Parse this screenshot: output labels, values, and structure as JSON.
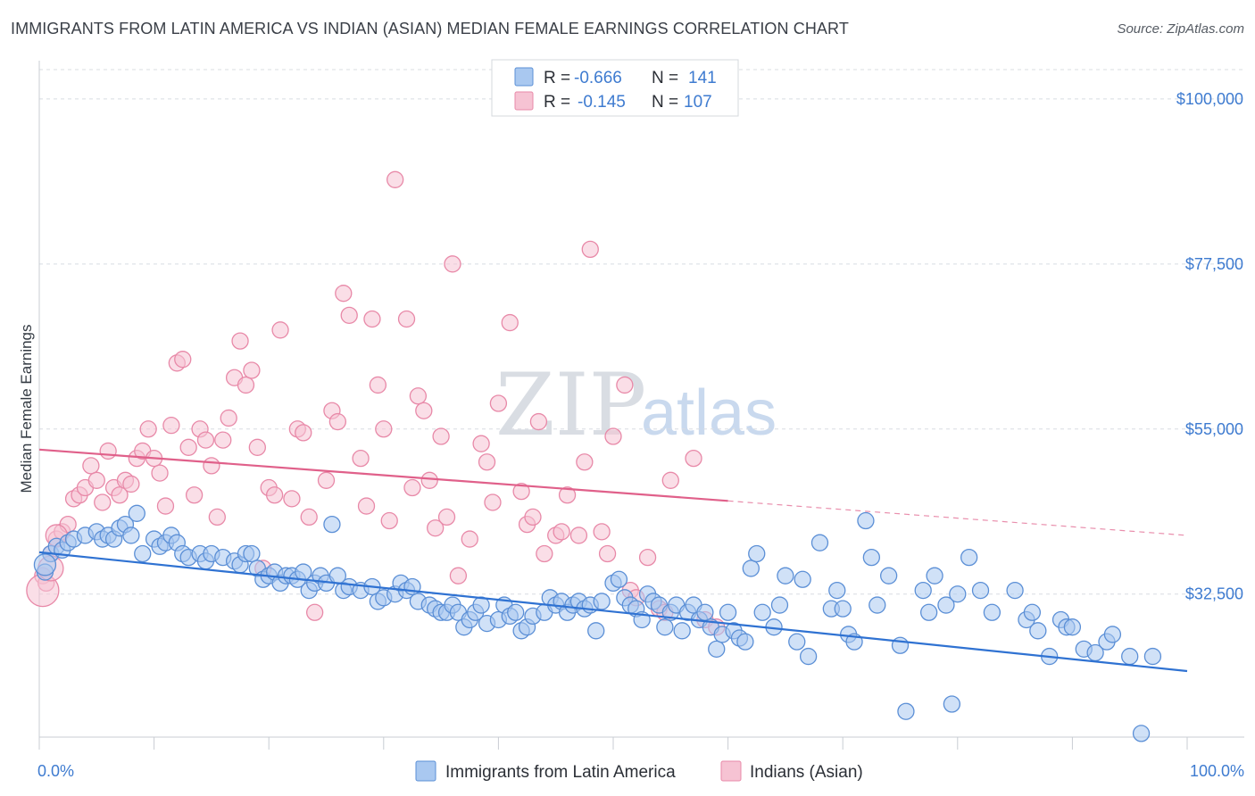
{
  "title": "IMMIGRANTS FROM LATIN AMERICA VS INDIAN (ASIAN) MEDIAN FEMALE EARNINGS CORRELATION CHART",
  "source": "Source: ZipAtlas.com",
  "watermark": {
    "zip": "ZIP",
    "atlas": "atlas"
  },
  "colors": {
    "blue_fill": "#a9c8f0",
    "blue_stroke": "#5b8fd6",
    "blue_line": "#2f72d2",
    "pink_fill": "#f6c3d3",
    "pink_stroke": "#e889a8",
    "pink_line": "#e0608a",
    "grid": "#d8dce2",
    "axis_text": "#3e7bd0"
  },
  "legend": {
    "rows": [
      {
        "r_label": "R =",
        "r_value": "-0.666",
        "n_label": "N =",
        "n_value": "141"
      },
      {
        "r_label": "R =",
        "r_value": "-0.145",
        "n_label": "N =",
        "n_value": "107"
      }
    ]
  },
  "bottom_legend": [
    "Immigrants from Latin America",
    "Indians (Asian)"
  ],
  "chart_data": {
    "type": "scatter",
    "title": "IMMIGRANTS FROM LATIN AMERICA VS INDIAN (ASIAN) MEDIAN FEMALE EARNINGS CORRELATION CHART",
    "xlabel": "",
    "ylabel": "Median Female Earnings",
    "xlim": [
      0,
      100
    ],
    "ylim": [
      13000,
      104000
    ],
    "x_tick_labels": [
      "0.0%",
      "100.0%"
    ],
    "y_ticks": [
      32500,
      55000,
      77500,
      100000
    ],
    "y_tick_labels": [
      "$32,500",
      "$55,000",
      "$77,500",
      "$100,000"
    ],
    "grid": true,
    "legend_position": "top-center",
    "series": [
      {
        "name": "Immigrants from Latin America",
        "r": -0.666,
        "n": 141,
        "trend": {
          "x": [
            0,
            100
          ],
          "y": [
            38200,
            22000
          ]
        },
        "points": [
          [
            0.5,
            35.5
          ],
          [
            1,
            38
          ],
          [
            1.5,
            39
          ],
          [
            2,
            38.5
          ],
          [
            2.5,
            39.5
          ],
          [
            3,
            40
          ],
          [
            4,
            40.5
          ],
          [
            5,
            41
          ],
          [
            5.5,
            40
          ],
          [
            6,
            40.5
          ],
          [
            6.5,
            40
          ],
          [
            7,
            41.5
          ],
          [
            7.5,
            42
          ],
          [
            8,
            40.5
          ],
          [
            8.5,
            43.5
          ],
          [
            9,
            38
          ],
          [
            10,
            40
          ],
          [
            10.5,
            39
          ],
          [
            11,
            39.5
          ],
          [
            11.5,
            40.5
          ],
          [
            12,
            39.5
          ],
          [
            12.5,
            38
          ],
          [
            13,
            37.5
          ],
          [
            14,
            38
          ],
          [
            14.5,
            37
          ],
          [
            15,
            38
          ],
          [
            16,
            37.5
          ],
          [
            17,
            37
          ],
          [
            17.5,
            36.5
          ],
          [
            18,
            38
          ],
          [
            18.5,
            38
          ],
          [
            19,
            36
          ],
          [
            19.5,
            34.5
          ],
          [
            20,
            35
          ],
          [
            20.5,
            35.5
          ],
          [
            21,
            34
          ],
          [
            21.5,
            35
          ],
          [
            22,
            35
          ],
          [
            22.5,
            34.5
          ],
          [
            23,
            35.5
          ],
          [
            23.5,
            33
          ],
          [
            24,
            34
          ],
          [
            24.5,
            35
          ],
          [
            25,
            34
          ],
          [
            25.5,
            42
          ],
          [
            26,
            35
          ],
          [
            26.5,
            33
          ],
          [
            27,
            33.5
          ],
          [
            28,
            33
          ],
          [
            29,
            33.5
          ],
          [
            29.5,
            31.5
          ],
          [
            30,
            32
          ],
          [
            31,
            32.5
          ],
          [
            31.5,
            34
          ],
          [
            32,
            33
          ],
          [
            32.5,
            33.5
          ],
          [
            33,
            31.5
          ],
          [
            34,
            31
          ],
          [
            34.5,
            30.5
          ],
          [
            35,
            30
          ],
          [
            35.5,
            30
          ],
          [
            36,
            31
          ],
          [
            36.5,
            30
          ],
          [
            37,
            28
          ],
          [
            37.5,
            29
          ],
          [
            38,
            30
          ],
          [
            38.5,
            31
          ],
          [
            39,
            28.5
          ],
          [
            40,
            29
          ],
          [
            40.5,
            31
          ],
          [
            41,
            29.5
          ],
          [
            41.5,
            30
          ],
          [
            42,
            27.5
          ],
          [
            42.5,
            28
          ],
          [
            43,
            29.5
          ],
          [
            44,
            30
          ],
          [
            44.5,
            32
          ],
          [
            45,
            31
          ],
          [
            45.5,
            31.5
          ],
          [
            46,
            30
          ],
          [
            46.5,
            31
          ],
          [
            47,
            31.5
          ],
          [
            47.5,
            30.5
          ],
          [
            48,
            31
          ],
          [
            48.5,
            27.5
          ],
          [
            49,
            31.5
          ],
          [
            50,
            34
          ],
          [
            50.5,
            34.5
          ],
          [
            51,
            32
          ],
          [
            51.5,
            31
          ],
          [
            52,
            30.5
          ],
          [
            52.5,
            29
          ],
          [
            53,
            32.5
          ],
          [
            53.5,
            31.5
          ],
          [
            54,
            31
          ],
          [
            54.5,
            28
          ],
          [
            55,
            30
          ],
          [
            55.5,
            31
          ],
          [
            56,
            27.5
          ],
          [
            56.5,
            30
          ],
          [
            57,
            31
          ],
          [
            57.5,
            29
          ],
          [
            58,
            30
          ],
          [
            58.5,
            28
          ],
          [
            59,
            25
          ],
          [
            59.5,
            27
          ],
          [
            60,
            30
          ],
          [
            60.5,
            27.5
          ],
          [
            61,
            26.5
          ],
          [
            61.5,
            26
          ],
          [
            62,
            36
          ],
          [
            62.5,
            38
          ],
          [
            63,
            30
          ],
          [
            64,
            28
          ],
          [
            64.5,
            31
          ],
          [
            65,
            35
          ],
          [
            66,
            26
          ],
          [
            66.5,
            34.5
          ],
          [
            67,
            24
          ],
          [
            68,
            39.5
          ],
          [
            69,
            30.5
          ],
          [
            69.5,
            33
          ],
          [
            70,
            30.5
          ],
          [
            70.5,
            27
          ],
          [
            71,
            26
          ],
          [
            72,
            42.5
          ],
          [
            72.5,
            37.5
          ],
          [
            73,
            31
          ],
          [
            74,
            35
          ],
          [
            75,
            25.5
          ],
          [
            75.5,
            16.5
          ],
          [
            77,
            33
          ],
          [
            77.5,
            30
          ],
          [
            78,
            35
          ],
          [
            79,
            31
          ],
          [
            79.5,
            17.5
          ],
          [
            80,
            32.5
          ],
          [
            81,
            37.5
          ],
          [
            82,
            33
          ],
          [
            83,
            30
          ],
          [
            85,
            33
          ],
          [
            86,
            29
          ],
          [
            86.5,
            30
          ],
          [
            87,
            27.5
          ],
          [
            88,
            24
          ],
          [
            89,
            29
          ],
          [
            89.5,
            28
          ],
          [
            90,
            28
          ],
          [
            91,
            25
          ],
          [
            92,
            24.5
          ],
          [
            93,
            26
          ],
          [
            93.5,
            27
          ],
          [
            95,
            24
          ],
          [
            97,
            24
          ],
          [
            96,
            13.5
          ]
        ]
      },
      {
        "name": "Indians (Asian)",
        "r": -0.145,
        "n": 107,
        "trend": {
          "x": [
            0,
            60
          ],
          "y": [
            52200,
            45200
          ]
        },
        "trend_dashed": {
          "x": [
            60,
            100
          ],
          "y": [
            45200,
            40500
          ]
        },
        "points": [
          [
            0.3,
            35
          ],
          [
            0.6,
            34
          ],
          [
            1,
            38
          ],
          [
            1.5,
            40
          ],
          [
            2,
            41
          ],
          [
            2.5,
            42
          ],
          [
            3,
            45.5
          ],
          [
            3.5,
            46
          ],
          [
            4,
            47
          ],
          [
            4.5,
            50
          ],
          [
            5,
            48
          ],
          [
            5.5,
            45
          ],
          [
            6,
            52
          ],
          [
            6.5,
            47
          ],
          [
            7,
            46
          ],
          [
            7.5,
            48
          ],
          [
            8,
            47.5
          ],
          [
            8.5,
            51
          ],
          [
            9,
            52
          ],
          [
            9.5,
            55
          ],
          [
            10,
            51
          ],
          [
            10.5,
            49
          ],
          [
            11,
            44.5
          ],
          [
            11.5,
            55.5
          ],
          [
            12,
            64
          ],
          [
            12.5,
            64.5
          ],
          [
            13,
            52.5
          ],
          [
            13.5,
            46
          ],
          [
            14,
            55
          ],
          [
            14.5,
            53.5
          ],
          [
            15,
            50
          ],
          [
            15.5,
            43
          ],
          [
            16,
            53.5
          ],
          [
            16.5,
            56.5
          ],
          [
            17,
            62
          ],
          [
            17.5,
            67
          ],
          [
            18,
            61
          ],
          [
            18.5,
            63
          ],
          [
            19,
            52.5
          ],
          [
            19.5,
            36
          ],
          [
            20,
            47
          ],
          [
            20.5,
            46
          ],
          [
            21,
            68.5
          ],
          [
            22,
            45.5
          ],
          [
            22.5,
            55
          ],
          [
            23,
            54.5
          ],
          [
            23.5,
            43
          ],
          [
            24,
            30
          ],
          [
            25,
            48
          ],
          [
            25.5,
            57.5
          ],
          [
            26,
            56
          ],
          [
            26.5,
            73.5
          ],
          [
            27,
            70.5
          ],
          [
            28,
            51
          ],
          [
            28.5,
            44.5
          ],
          [
            29,
            70
          ],
          [
            29.5,
            61
          ],
          [
            30,
            55
          ],
          [
            30.5,
            42.5
          ],
          [
            31,
            89
          ],
          [
            32,
            70
          ],
          [
            32.5,
            47
          ],
          [
            33,
            59.5
          ],
          [
            33.5,
            57.5
          ],
          [
            34,
            48
          ],
          [
            34.5,
            41.5
          ],
          [
            35,
            54
          ],
          [
            35.5,
            43
          ],
          [
            36,
            77.5
          ],
          [
            36.5,
            35
          ],
          [
            37.5,
            40
          ],
          [
            38.5,
            53
          ],
          [
            39,
            50.5
          ],
          [
            39.5,
            45
          ],
          [
            40,
            58.5
          ],
          [
            41,
            69.5
          ],
          [
            42,
            46.5
          ],
          [
            42.5,
            42
          ],
          [
            43,
            43
          ],
          [
            43.5,
            56
          ],
          [
            44,
            38
          ],
          [
            45,
            40.5
          ],
          [
            45.5,
            41
          ],
          [
            46,
            46
          ],
          [
            47,
            40.5
          ],
          [
            47.5,
            50.5
          ],
          [
            48,
            79.5
          ],
          [
            49,
            41
          ],
          [
            49.5,
            38
          ],
          [
            50,
            54
          ],
          [
            51,
            61
          ],
          [
            51.5,
            33
          ],
          [
            52,
            32
          ],
          [
            53,
            37.5
          ],
          [
            54,
            30.5
          ],
          [
            54.5,
            30
          ],
          [
            55,
            48
          ],
          [
            57,
            51
          ],
          [
            58,
            29
          ],
          [
            59,
            28
          ]
        ]
      }
    ]
  }
}
